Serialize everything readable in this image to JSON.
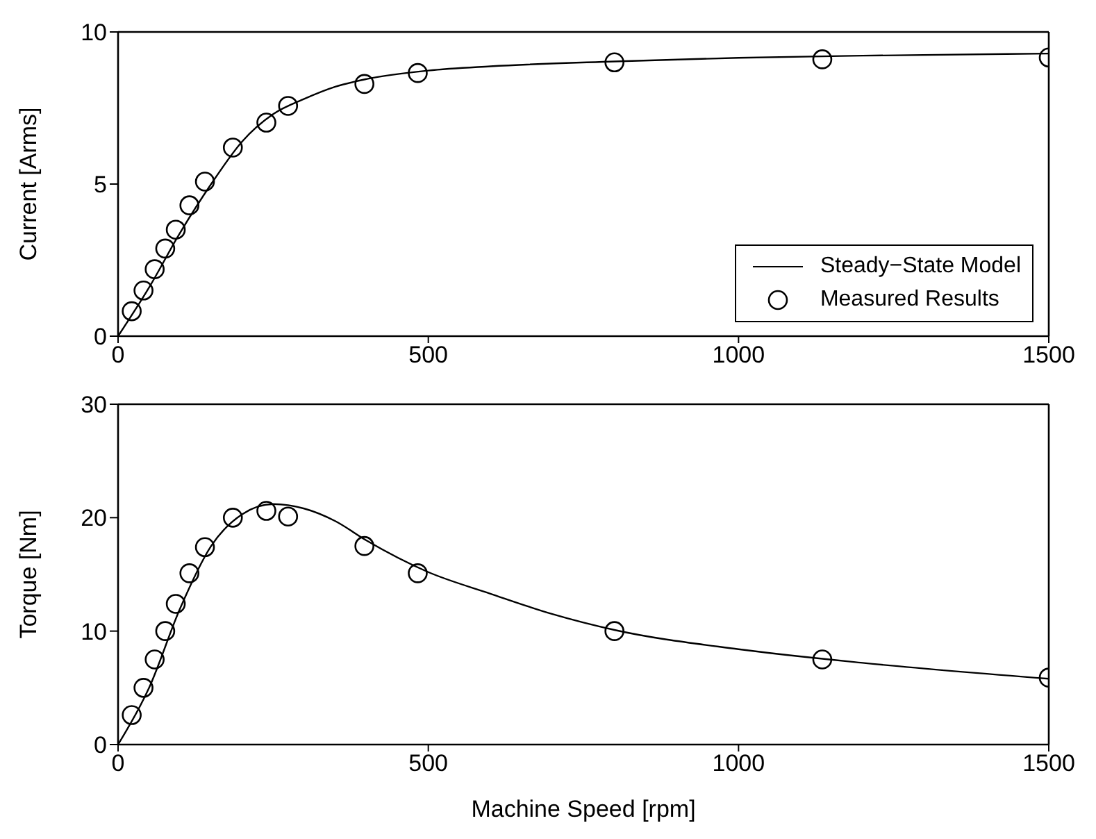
{
  "chart_data": [
    {
      "type": "line",
      "ylabel": "Current [Arms]",
      "xlim": [
        0,
        1500
      ],
      "xticks": [
        0,
        500,
        1000,
        1500
      ],
      "ylim": [
        0,
        10
      ],
      "yticks": [
        0,
        5,
        10
      ],
      "legend": "bottom right",
      "series": [
        {
          "name": "Steady−State Model",
          "marker": "none",
          "line_style": "solid",
          "color": "#000000",
          "x": [
            0,
            50,
            100,
            150,
            200,
            250,
            300,
            350,
            400,
            500,
            600,
            800,
            1000,
            1200,
            1500
          ],
          "values": [
            0,
            1.6,
            3.4,
            5.0,
            6.4,
            7.3,
            7.8,
            8.2,
            8.45,
            8.73,
            8.87,
            9.03,
            9.15,
            9.22,
            9.29
          ]
        },
        {
          "name": "Measured Results",
          "type": "scatter",
          "marker": "circle",
          "color": "#000000",
          "x": [
            22,
            41,
            59,
            76,
            93,
            115,
            140,
            185,
            239,
            274,
            397,
            483,
            800,
            1135,
            1500
          ],
          "values": [
            0.82,
            1.5,
            2.2,
            2.88,
            3.5,
            4.3,
            5.08,
            6.2,
            7.02,
            7.57,
            8.29,
            8.65,
            9.0,
            9.1,
            9.16
          ]
        }
      ]
    },
    {
      "type": "line",
      "xlabel": "Machine Speed [rpm]",
      "ylabel": "Torque [Nm]",
      "xlim": [
        0,
        1500
      ],
      "xticks": [
        0,
        500,
        1000,
        1500
      ],
      "ylim": [
        0,
        30
      ],
      "yticks": [
        0,
        10,
        20,
        30
      ],
      "legend": false,
      "series": [
        {
          "marker": "none",
          "line_style": "solid",
          "color": "#000000",
          "x": [
            0,
            50,
            100,
            150,
            200,
            250,
            300,
            350,
            400,
            500,
            600,
            700,
            800,
            1000,
            1200,
            1500
          ],
          "values": [
            0,
            5,
            12,
            17.5,
            20.3,
            21.2,
            20.8,
            19.7,
            18,
            15.2,
            13.3,
            11.5,
            10.1,
            8.4,
            7.2,
            5.8
          ]
        },
        {
          "type": "scatter",
          "marker": "circle",
          "color": "#000000",
          "x": [
            22,
            41,
            59,
            76,
            93,
            115,
            140,
            185,
            239,
            274,
            397,
            483,
            800,
            1135,
            1500
          ],
          "values": [
            2.6,
            5.0,
            7.5,
            10.0,
            12.4,
            15.1,
            17.4,
            20.0,
            20.6,
            20.1,
            17.5,
            15.1,
            10.0,
            7.5,
            5.9
          ]
        }
      ]
    }
  ]
}
